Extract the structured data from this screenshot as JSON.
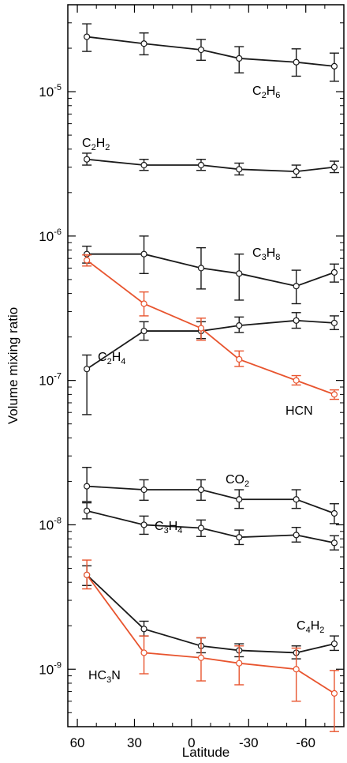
{
  "chart_data": {
    "type": "line",
    "xlabel": "Latitude",
    "ylabel": "Volume mixing ratio",
    "x_ticks": [
      60,
      30,
      0,
      -30,
      -60
    ],
    "x_tick_labels": [
      "60",
      "30",
      "0",
      "-30",
      "-60"
    ],
    "xlim": [
      65,
      -80
    ],
    "ylim": [
      4e-10,
      4e-05
    ],
    "y_scale": "log",
    "y_tick_labels": [
      {
        "value": 1e-05,
        "base": "10",
        "exp": "-5"
      },
      {
        "value": 1e-06,
        "base": "10",
        "exp": "-6"
      },
      {
        "value": 1e-07,
        "base": "10",
        "exp": "-7"
      },
      {
        "value": 1e-08,
        "base": "10",
        "exp": "-8"
      },
      {
        "value": 1e-09,
        "base": "10",
        "exp": "-9"
      }
    ],
    "x": [
      55,
      25,
      -5,
      -25,
      -55,
      -75
    ],
    "grid": false,
    "legend": "none",
    "series": [
      {
        "name": "C2H6",
        "label_main": "C",
        "label_parts": [
          [
            "C",
            ""
          ],
          [
            "2",
            "sub"
          ],
          [
            "H",
            ""
          ],
          [
            "6",
            "sub"
          ]
        ],
        "color": "#1a1a1a",
        "values": [
          2.4e-05,
          2.15e-05,
          1.95e-05,
          1.7e-05,
          1.6e-05,
          1.5e-05
        ],
        "err_low": [
          1.9e-05,
          1.8e-05,
          1.65e-05,
          1.35e-05,
          1.28e-05,
          1.18e-05
        ],
        "err_high": [
          2.95e-05,
          2.55e-05,
          2.3e-05,
          2.05e-05,
          1.98e-05,
          1.85e-05
        ]
      },
      {
        "name": "C2H2",
        "label_parts": [
          [
            "C",
            ""
          ],
          [
            "2",
            "sub"
          ],
          [
            "H",
            ""
          ],
          [
            "2",
            "sub"
          ]
        ],
        "color": "#1a1a1a",
        "values": [
          3.4e-06,
          3.1e-06,
          3.1e-06,
          2.9e-06,
          2.8e-06,
          3e-06
        ],
        "err_low": [
          3.1e-06,
          2.85e-06,
          2.85e-06,
          2.65e-06,
          2.55e-06,
          2.75e-06
        ],
        "err_high": [
          3.75e-06,
          3.4e-06,
          3.4e-06,
          3.2e-06,
          3.1e-06,
          3.3e-06
        ]
      },
      {
        "name": "C3H8",
        "label_parts": [
          [
            "C",
            ""
          ],
          [
            "3",
            "sub"
          ],
          [
            "H",
            ""
          ],
          [
            "8",
            "sub"
          ]
        ],
        "color": "#1a1a1a",
        "values": [
          7.5e-07,
          7.5e-07,
          6e-07,
          5.5e-07,
          4.5e-07,
          5.6e-07
        ],
        "err_low": [
          6.5e-07,
          5.5e-07,
          4.3e-07,
          3.6e-07,
          3.4e-07,
          4.8e-07
        ],
        "err_high": [
          8.5e-07,
          1e-06,
          8.3e-07,
          7.5e-07,
          5.8e-07,
          6.4e-07
        ]
      },
      {
        "name": "C2H4",
        "label_parts": [
          [
            "C",
            ""
          ],
          [
            "2",
            "sub"
          ],
          [
            "H",
            ""
          ],
          [
            "4",
            "sub"
          ]
        ],
        "color": "#1a1a1a",
        "values": [
          1.2e-07,
          2.2e-07,
          2.2e-07,
          2.4e-07,
          2.6e-07,
          2.5e-07
        ],
        "err_low": [
          5.8e-08,
          1.9e-07,
          1.95e-07,
          2.15e-07,
          2.3e-07,
          2.25e-07
        ],
        "err_high": [
          1.5e-07,
          2.55e-07,
          2.55e-07,
          2.75e-07,
          2.95e-07,
          2.8e-07
        ]
      },
      {
        "name": "HCN",
        "label_parts": [
          [
            "HCN",
            ""
          ]
        ],
        "color": "#e8542e",
        "values": [
          6.8e-07,
          3.4e-07,
          2.3e-07,
          1.4e-07,
          1e-07,
          8e-08
        ],
        "err_low": [
          6.2e-07,
          2.8e-07,
          1.9e-07,
          1.25e-07,
          9.3e-08,
          7.4e-08
        ],
        "err_high": [
          7.4e-07,
          4.1e-07,
          2.7e-07,
          1.6e-07,
          1.08e-07,
          8.6e-08
        ]
      },
      {
        "name": "CO2",
        "label_parts": [
          [
            "CO",
            ""
          ],
          [
            "2",
            "sub"
          ]
        ],
        "color": "#1a1a1a",
        "values": [
          1.85e-08,
          1.75e-08,
          1.75e-08,
          1.5e-08,
          1.5e-08,
          1.2e-08
        ],
        "err_low": [
          1.45e-08,
          1.48e-08,
          1.48e-08,
          1.3e-08,
          1.3e-08,
          1.02e-08
        ],
        "err_high": [
          2.5e-08,
          2.05e-08,
          2.05e-08,
          1.75e-08,
          1.75e-08,
          1.4e-08
        ]
      },
      {
        "name": "C3H4",
        "label_parts": [
          [
            "C",
            ""
          ],
          [
            "3",
            "sub"
          ],
          [
            "H",
            ""
          ],
          [
            "4",
            "sub"
          ]
        ],
        "color": "#1a1a1a",
        "values": [
          1.25e-08,
          1e-08,
          9.5e-09,
          8.2e-09,
          8.5e-09,
          7.5e-09
        ],
        "err_low": [
          1.1e-08,
          8.6e-09,
          8.3e-09,
          7.3e-09,
          7.6e-09,
          6.7e-09
        ],
        "err_high": [
          1.42e-08,
          1.15e-08,
          1.08e-08,
          9.2e-09,
          9.6e-09,
          8.4e-09
        ]
      },
      {
        "name": "C4H2",
        "label_parts": [
          [
            "C",
            ""
          ],
          [
            "4",
            "sub"
          ],
          [
            "H",
            ""
          ],
          [
            "2",
            "sub"
          ]
        ],
        "color": "#1a1a1a",
        "values": [
          4.5e-09,
          1.9e-09,
          1.45e-09,
          1.35e-09,
          1.3e-09,
          1.5e-09
        ],
        "err_low": [
          3.8e-09,
          1.7e-09,
          1.3e-09,
          1.22e-09,
          1.18e-09,
          1.35e-09
        ],
        "err_high": [
          5.2e-09,
          2.15e-09,
          1.65e-09,
          1.5e-09,
          1.45e-09,
          1.7e-09
        ]
      },
      {
        "name": "HC3N",
        "label_parts": [
          [
            "HC",
            ""
          ],
          [
            "3",
            "sub"
          ],
          [
            "N",
            ""
          ]
        ],
        "color": "#e8542e",
        "values": [
          4.5e-09,
          1.3e-09,
          1.2e-09,
          1.1e-09,
          1e-09,
          6.8e-10
        ],
        "err_low": [
          3.6e-09,
          9.3e-10,
          8.3e-10,
          7.8e-10,
          6e-10,
          3.7e-10
        ],
        "err_high": [
          5.7e-09,
          1.7e-09,
          1.65e-09,
          1.45e-09,
          1.4e-09,
          9.8e-10
        ]
      }
    ]
  }
}
